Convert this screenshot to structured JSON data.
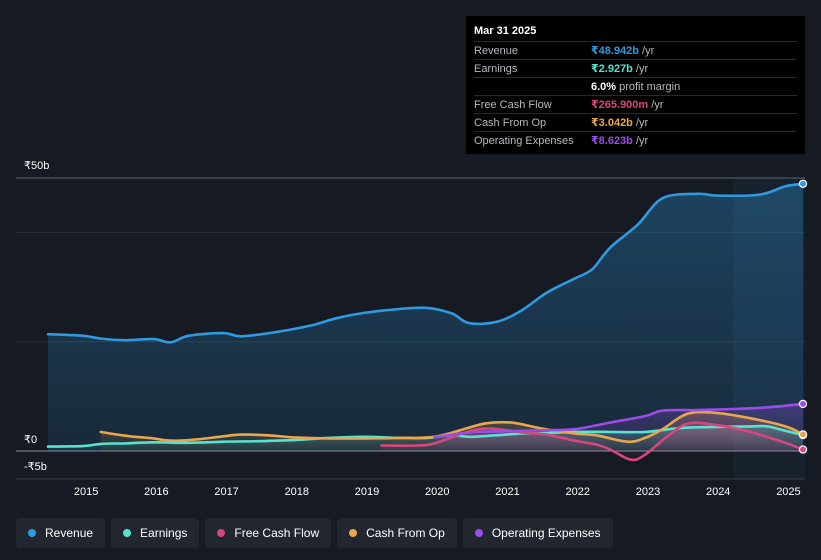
{
  "tooltip": {
    "date": "Mar 31 2025",
    "rows": [
      {
        "label": "Revenue",
        "value": "₹48.942b",
        "unit": "/yr",
        "color": "#2f9ae0"
      },
      {
        "label": "Earnings",
        "value": "₹2.927b",
        "unit": "/yr",
        "color": "#58e2cf"
      },
      {
        "label": "",
        "value": "6.0%",
        "unit": "profit margin",
        "color": "#ffffff"
      },
      {
        "label": "Free Cash Flow",
        "value": "₹265.900m",
        "unit": "/yr",
        "color": "#d6477e"
      },
      {
        "label": "Cash From Op",
        "value": "₹3.042b",
        "unit": "/yr",
        "color": "#e9a74d"
      },
      {
        "label": "Operating Expenses",
        "value": "₹8.623b",
        "unit": "/yr",
        "color": "#9c4ce8"
      }
    ]
  },
  "legend": [
    {
      "label": "Revenue",
      "color": "#2f9ae0"
    },
    {
      "label": "Earnings",
      "color": "#58e2cf"
    },
    {
      "label": "Free Cash Flow",
      "color": "#d6477e"
    },
    {
      "label": "Cash From Op",
      "color": "#e9a74d"
    },
    {
      "label": "Operating Expenses",
      "color": "#9c4ce8"
    }
  ],
  "chart_data": {
    "type": "line",
    "currency_unit": "₹ billions",
    "y_tick_labels": [
      "₹50b",
      "₹0",
      "-₹5b"
    ],
    "ylim": [
      -5,
      50
    ],
    "xlim": [
      2014.5,
      2025.25
    ],
    "x_tick_labels": [
      "2015",
      "2016",
      "2017",
      "2018",
      "2019",
      "2020",
      "2021",
      "2022",
      "2023",
      "2024",
      "2025"
    ],
    "x_tick_values": [
      2015,
      2016,
      2017,
      2018,
      2019,
      2020,
      2021,
      2022,
      2023,
      2024,
      2025
    ],
    "highlight_from": 2024.25,
    "series": [
      {
        "name": "Revenue",
        "color": "#2f9ae0",
        "area": true,
        "points": [
          [
            2014.5,
            21.4
          ],
          [
            2015.0,
            21.1
          ],
          [
            2015.25,
            20.6
          ],
          [
            2015.6,
            20.3
          ],
          [
            2016.0,
            20.5
          ],
          [
            2016.25,
            19.9
          ],
          [
            2016.5,
            21.1
          ],
          [
            2017.0,
            21.6
          ],
          [
            2017.25,
            21.0
          ],
          [
            2017.75,
            21.8
          ],
          [
            2018.25,
            23.0
          ],
          [
            2018.6,
            24.3
          ],
          [
            2019.0,
            25.3
          ],
          [
            2019.5,
            26.0
          ],
          [
            2019.9,
            26.2
          ],
          [
            2020.25,
            25.2
          ],
          [
            2020.5,
            23.4
          ],
          [
            2020.9,
            23.7
          ],
          [
            2021.25,
            25.8
          ],
          [
            2021.6,
            29.0
          ],
          [
            2022.0,
            31.6
          ],
          [
            2022.25,
            33.3
          ],
          [
            2022.5,
            37.2
          ],
          [
            2022.9,
            41.5
          ],
          [
            2023.25,
            46.3
          ],
          [
            2023.75,
            47.1
          ],
          [
            2024.0,
            46.8
          ],
          [
            2024.5,
            46.8
          ],
          [
            2024.75,
            47.3
          ],
          [
            2025.0,
            48.5
          ],
          [
            2025.25,
            48.942
          ]
        ]
      },
      {
        "name": "Earnings",
        "color": "#58e2cf",
        "area": true,
        "points": [
          [
            2014.5,
            0.8
          ],
          [
            2015.0,
            0.9
          ],
          [
            2015.25,
            1.3
          ],
          [
            2015.6,
            1.4
          ],
          [
            2016.0,
            1.6
          ],
          [
            2016.5,
            1.5
          ],
          [
            2017.0,
            1.7
          ],
          [
            2017.5,
            1.8
          ],
          [
            2018.0,
            2.0
          ],
          [
            2018.5,
            2.4
          ],
          [
            2019.0,
            2.6
          ],
          [
            2019.5,
            2.4
          ],
          [
            2019.9,
            2.4
          ],
          [
            2020.25,
            2.9
          ],
          [
            2020.5,
            2.6
          ],
          [
            2020.9,
            2.9
          ],
          [
            2021.25,
            3.2
          ],
          [
            2021.6,
            3.3
          ],
          [
            2022.0,
            3.5
          ],
          [
            2022.5,
            3.5
          ],
          [
            2023.0,
            3.5
          ],
          [
            2023.5,
            4.2
          ],
          [
            2024.0,
            4.4
          ],
          [
            2024.5,
            4.5
          ],
          [
            2024.75,
            4.5
          ],
          [
            2025.0,
            3.7
          ],
          [
            2025.25,
            2.927
          ]
        ]
      },
      {
        "name": "Free Cash Flow",
        "color": "#d6477e",
        "area": true,
        "points": [
          [
            2019.25,
            1.0
          ],
          [
            2019.75,
            1.0
          ],
          [
            2020.0,
            1.4
          ],
          [
            2020.5,
            3.6
          ],
          [
            2020.8,
            4.1
          ],
          [
            2021.25,
            3.4
          ],
          [
            2021.6,
            3.0
          ],
          [
            2022.0,
            1.9
          ],
          [
            2022.3,
            1.2
          ],
          [
            2022.5,
            0.3
          ],
          [
            2022.8,
            -1.6
          ],
          [
            2023.0,
            -0.7
          ],
          [
            2023.3,
            2.5
          ],
          [
            2023.6,
            5.0
          ],
          [
            2024.0,
            4.8
          ],
          [
            2024.5,
            3.5
          ],
          [
            2025.0,
            1.5
          ],
          [
            2025.25,
            0.2659
          ]
        ]
      },
      {
        "name": "Cash From Op",
        "color": "#e9a74d",
        "area": true,
        "points": [
          [
            2015.25,
            3.5
          ],
          [
            2015.6,
            2.8
          ],
          [
            2016.0,
            2.3
          ],
          [
            2016.25,
            1.9
          ],
          [
            2016.6,
            2.1
          ],
          [
            2017.0,
            2.7
          ],
          [
            2017.25,
            3.0
          ],
          [
            2017.6,
            2.9
          ],
          [
            2018.0,
            2.5
          ],
          [
            2018.5,
            2.3
          ],
          [
            2019.0,
            2.3
          ],
          [
            2019.5,
            2.4
          ],
          [
            2020.0,
            2.6
          ],
          [
            2020.5,
            4.3
          ],
          [
            2020.75,
            5.1
          ],
          [
            2021.1,
            5.2
          ],
          [
            2021.5,
            4.2
          ],
          [
            2022.0,
            3.2
          ],
          [
            2022.3,
            2.9
          ],
          [
            2022.75,
            1.7
          ],
          [
            2023.0,
            2.4
          ],
          [
            2023.25,
            4.0
          ],
          [
            2023.6,
            6.8
          ],
          [
            2024.0,
            7.0
          ],
          [
            2024.5,
            6.0
          ],
          [
            2025.0,
            4.5
          ],
          [
            2025.25,
            3.042
          ]
        ]
      },
      {
        "name": "Operating Expenses",
        "color": "#9c4ce8",
        "area": true,
        "points": [
          [
            2020.0,
            2.5
          ],
          [
            2020.5,
            3.4
          ],
          [
            2021.0,
            3.6
          ],
          [
            2021.5,
            3.8
          ],
          [
            2022.0,
            4.0
          ],
          [
            2022.5,
            5.2
          ],
          [
            2023.0,
            6.4
          ],
          [
            2023.25,
            7.4
          ],
          [
            2023.75,
            7.5
          ],
          [
            2024.25,
            7.7
          ],
          [
            2024.75,
            8.0
          ],
          [
            2025.25,
            8.623
          ]
        ]
      }
    ]
  }
}
